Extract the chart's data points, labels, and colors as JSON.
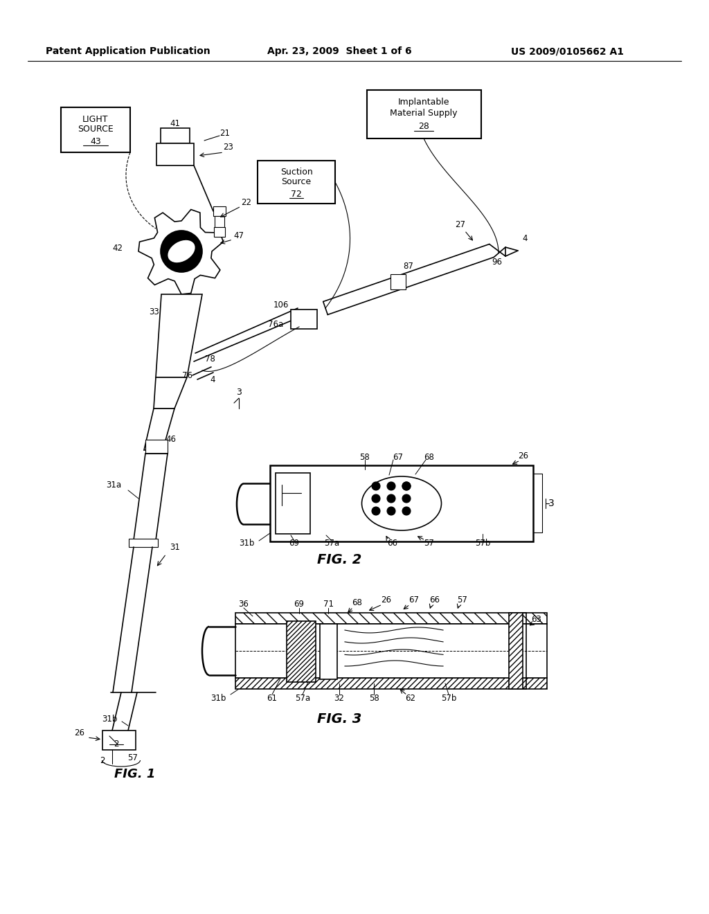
{
  "header_left": "Patent Application Publication",
  "header_mid": "Apr. 23, 2009  Sheet 1 of 6",
  "header_right": "US 2009/0105662 A1",
  "bg_color": "#ffffff",
  "line_color": "#000000",
  "fig_label1": "FIG. 1",
  "fig_label2": "FIG. 2",
  "fig_label3": "FIG. 3"
}
